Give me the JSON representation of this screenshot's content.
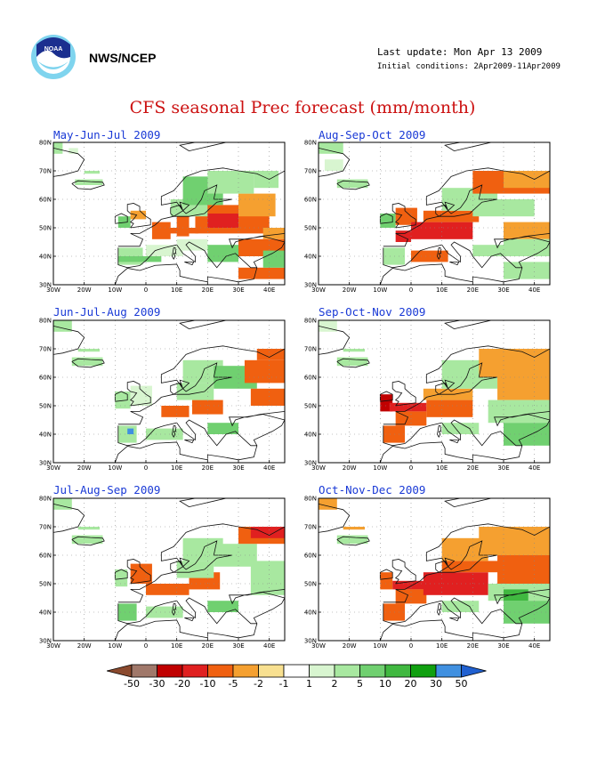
{
  "header": {
    "org": "NWS/NCEP",
    "last_update": "Last update: Mon Apr 13 2009",
    "initial_conditions": "Initial conditions: 2Apr2009-11Apr2009",
    "logo": "noaa-logo"
  },
  "title": "CFS seasonal Prec forecast (mm/month)",
  "axes": {
    "lat_labels": [
      "80N",
      "70N",
      "60N",
      "50N",
      "40N",
      "30N"
    ],
    "lon_labels": [
      "30W",
      "20W",
      "10W",
      "0",
      "10E",
      "20E",
      "30E",
      "40E"
    ]
  },
  "panels": [
    {
      "label": "May-Jun-Jul 2009"
    },
    {
      "label": "Aug-Sep-Oct 2009"
    },
    {
      "label": "Jun-Jul-Aug 2009"
    },
    {
      "label": "Sep-Oct-Nov 2009"
    },
    {
      "label": "Jul-Aug-Sep 2009"
    },
    {
      "label": "Oct-Nov-Dec 2009"
    }
  ],
  "colorbar": {
    "labels": [
      "-50",
      "-30",
      "-20",
      "-10",
      "-5",
      "-2",
      "-1",
      "1",
      "2",
      "5",
      "10",
      "20",
      "30",
      "50"
    ],
    "colors": [
      "#8B4A2E",
      "#A0786A",
      "#C00000",
      "#E02020",
      "#F06010",
      "#F5A030",
      "#F8E090",
      "#FFFFFF",
      "#D8F5D0",
      "#A8E8A0",
      "#70D070",
      "#40B840",
      "#10A010",
      "#4090E0",
      "#2060D0"
    ]
  },
  "colors": {
    "title": "#cc1111",
    "panel_title": "#1a3ad6"
  }
}
